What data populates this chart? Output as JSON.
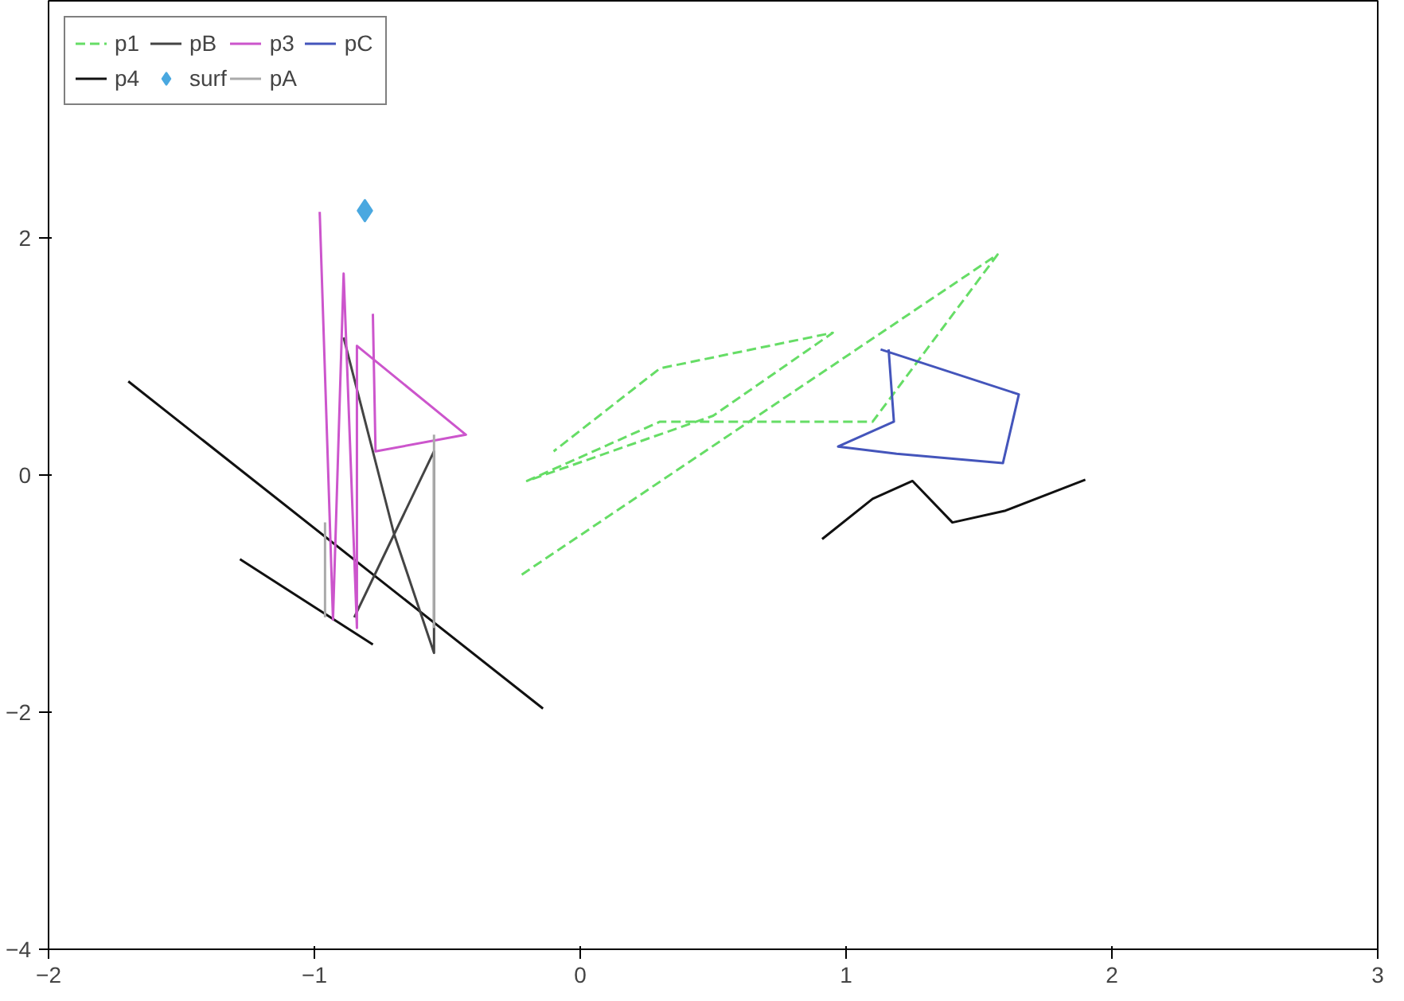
{
  "chart_data": {
    "type": "line",
    "xlim": [
      -2,
      3
    ],
    "ylim": [
      -4,
      4
    ],
    "xticks": [
      -2,
      -1,
      0,
      1,
      2,
      3
    ],
    "yticks": [
      -4,
      -2,
      0,
      2
    ],
    "grid": false,
    "legend": "top left",
    "series": [
      {
        "name": "p1",
        "color": "#66dd66",
        "line_style": "dashed",
        "x": [
          -0.22,
          1.57,
          1.1,
          0.3,
          -0.2,
          0.5,
          0.95,
          0.3,
          -0.1
        ],
        "values": [
          -0.84,
          1.86,
          0.45,
          0.45,
          -0.05,
          0.5,
          1.2,
          0.9,
          0.2
        ]
      },
      {
        "name": "p4",
        "color": "#111111",
        "x": [
          -1.7,
          -0.14,
          null,
          -1.28,
          -0.78,
          null,
          0.91,
          1.1,
          1.25,
          1.4,
          1.6,
          1.9
        ],
        "values": [
          0.79,
          -1.97,
          null,
          -0.71,
          -1.43,
          null,
          -0.54,
          -0.2,
          -0.05,
          -0.4,
          -0.3,
          -0.04
        ]
      },
      {
        "name": "pB",
        "color": "#444444",
        "x": [
          -0.89,
          -0.7,
          -0.55,
          -0.55,
          -0.7,
          -0.85
        ],
        "values": [
          1.16,
          -0.5,
          -1.5,
          0.2,
          -0.5,
          -1.2
        ]
      },
      {
        "name": "surf",
        "type": "scatter",
        "marker": "diamond",
        "color": "#4aa8e0",
        "x": [
          -0.81
        ],
        "values": [
          2.23
        ]
      },
      {
        "name": "p3",
        "color": "#cc55cc",
        "x": [
          -0.98,
          -0.93,
          -0.89,
          -0.84,
          -0.84,
          -0.43,
          -0.77,
          -0.78
        ],
        "values": [
          2.22,
          -1.22,
          1.7,
          -1.29,
          1.09,
          0.34,
          0.2,
          1.36
        ]
      },
      {
        "name": "pA",
        "color": "#aaaaaa",
        "x": [
          -0.96,
          -0.96,
          null,
          -0.55,
          -0.55
        ],
        "values": [
          -0.4,
          -1.2,
          null,
          -1.29,
          0.34
        ]
      },
      {
        "name": "pC",
        "color": "#4455bb",
        "x": [
          1.13,
          1.65,
          1.59,
          1.19,
          0.97,
          1.18,
          1.16
        ],
        "values": [
          1.06,
          0.68,
          0.1,
          0.18,
          0.24,
          0.45,
          1.06
        ]
      }
    ]
  }
}
